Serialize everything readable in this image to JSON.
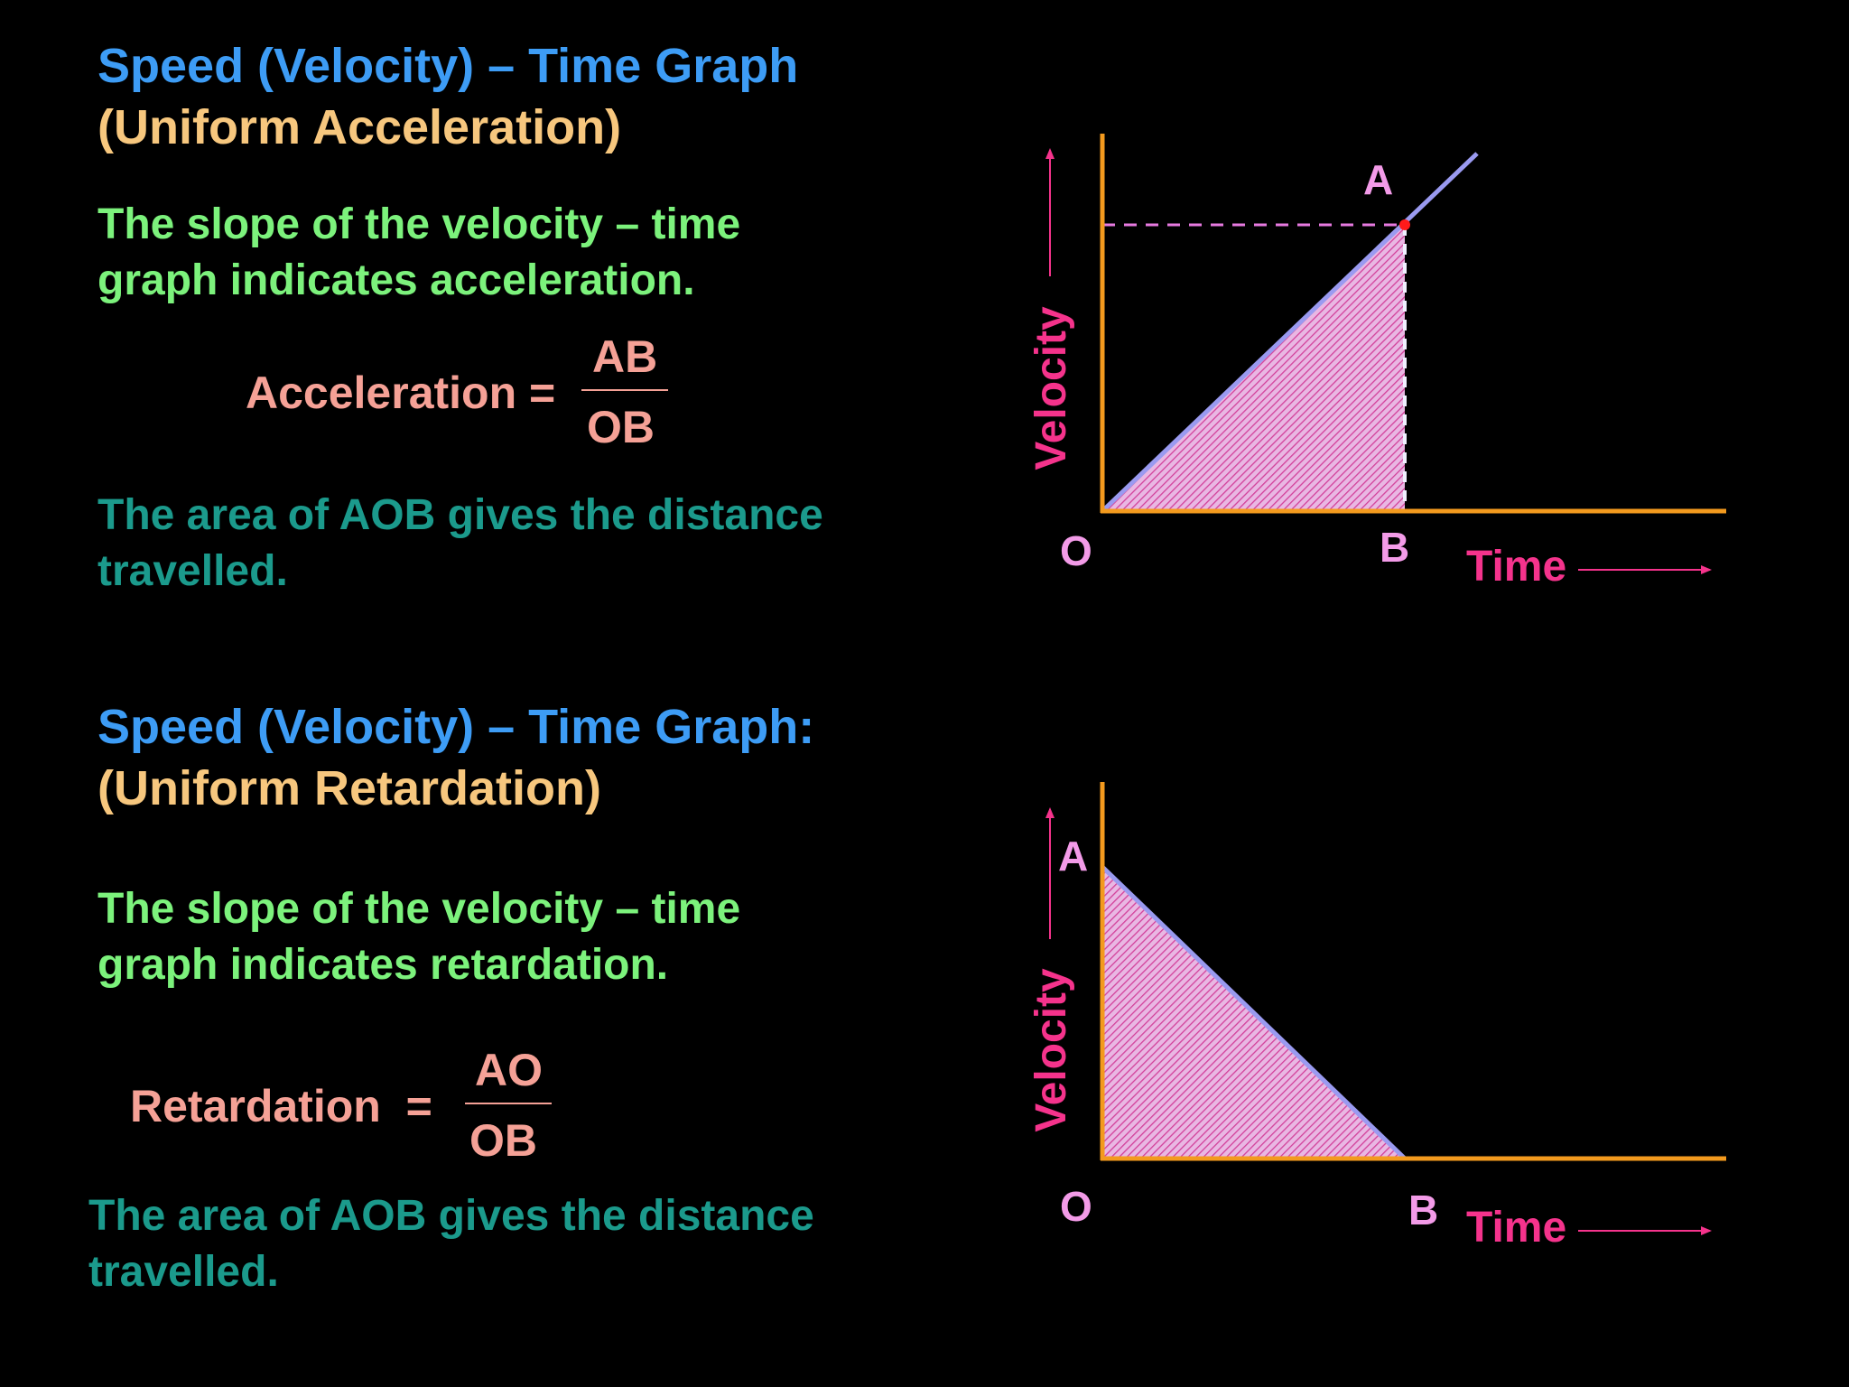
{
  "acceleration": {
    "title": "Speed (Velocity) – Time Graph",
    "subtitle": "(Uniform Acceleration)",
    "slope_line1": "The slope of the velocity – time",
    "slope_line2": "graph indicates acceleration.",
    "formula_label": "Acceleration =",
    "numerator": "AB",
    "denominator": "OB",
    "area_line1": "The area of AOB gives the distance",
    "area_line2": "travelled.",
    "graph": {
      "y_axis_label": "Velocity",
      "x_axis_label": "Time",
      "point_a": "A",
      "point_b": "B",
      "point_o": "O"
    }
  },
  "retardation": {
    "title": "Speed (Velocity) – Time Graph:",
    "subtitle": "(Uniform Retardation)",
    "slope_line1": "The slope of the velocity – time",
    "slope_line2": "graph indicates retardation.",
    "formula_label": "Retardation  =",
    "numerator": "AO",
    "denominator": "OB",
    "area_line1": "The area of AOB gives the distance",
    "area_line2": "travelled.",
    "graph": {
      "y_axis_label": "Velocity",
      "x_axis_label": "Time",
      "point_a": "A",
      "point_b": "B",
      "point_o": "O"
    }
  },
  "colors": {
    "axis": "#f39a1e",
    "line": "#9a9af0",
    "fill_hatch": "#d2409a",
    "dashed": "#e77ae0",
    "marker": "#ff1a1a",
    "arrow": "#f5338c"
  }
}
